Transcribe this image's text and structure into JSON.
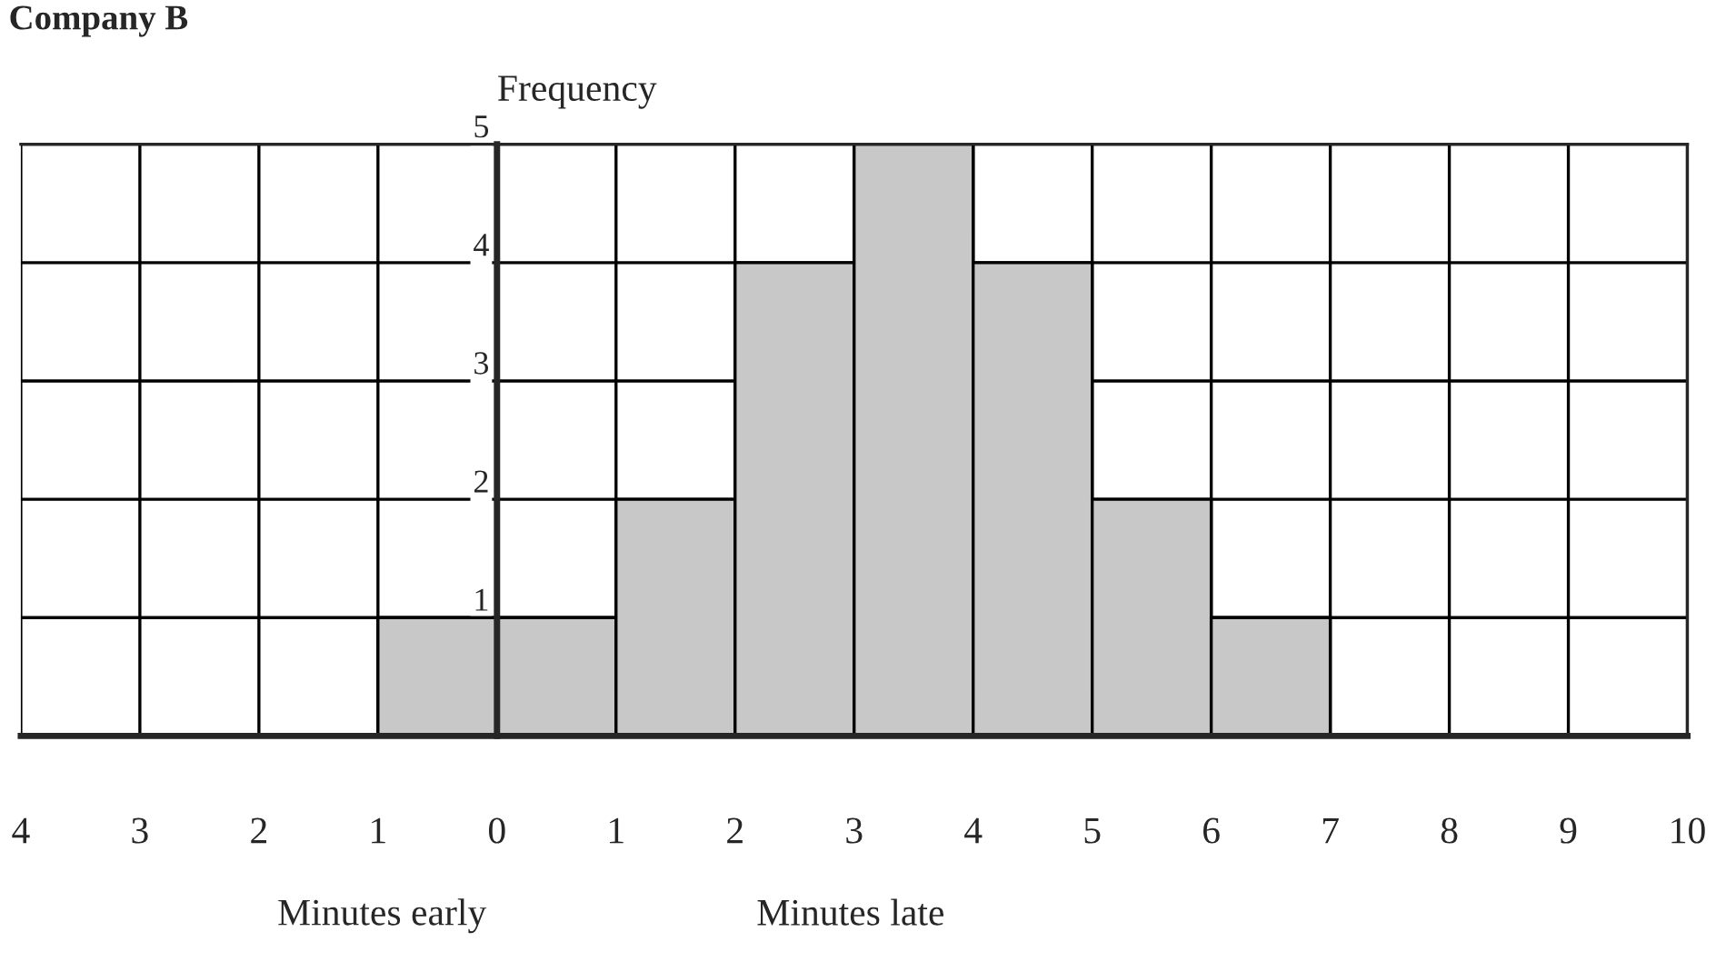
{
  "chart_data": {
    "type": "histogram",
    "title": "Company B",
    "ylabel": "Frequency",
    "bins": [
      -1,
      0,
      1,
      2,
      3,
      4,
      5,
      6,
      7
    ],
    "values": [
      1,
      1,
      2,
      4,
      5,
      4,
      2,
      1
    ],
    "color": "#c8c8c8",
    "xlim": [
      -4,
      10
    ],
    "xticks": [
      {
        "value": -4,
        "label": "4"
      },
      {
        "value": -3,
        "label": "3"
      },
      {
        "value": -2,
        "label": "2"
      },
      {
        "value": -1,
        "label": "1"
      },
      0,
      1,
      2,
      3,
      4,
      5,
      6,
      7,
      8,
      9,
      10
    ],
    "ylim": [
      0,
      5
    ],
    "yticks": [
      1,
      2,
      3,
      4,
      5
    ],
    "grid": true,
    "annotations": [
      "Minutes early",
      "Minutes late"
    ]
  }
}
